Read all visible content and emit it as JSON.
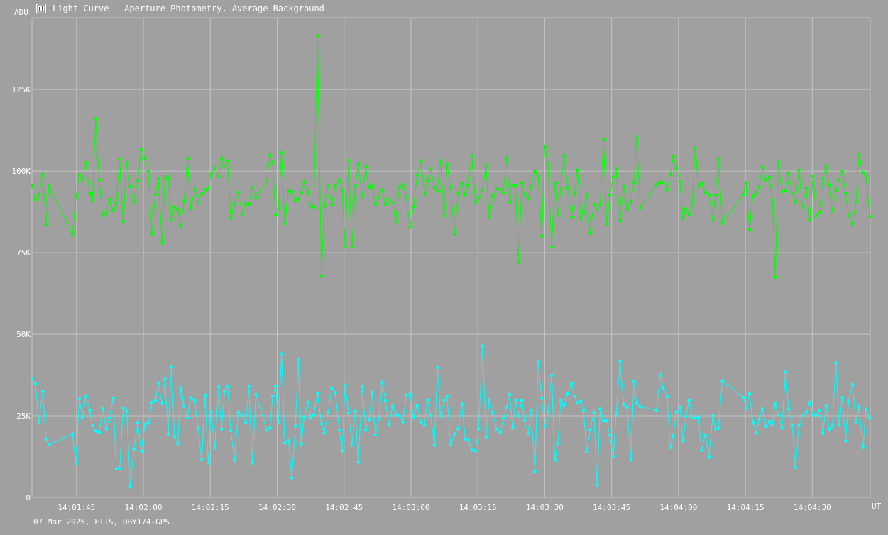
{
  "window": {
    "icon": "photometry-app-icon",
    "title": "Light Curve - Aperture Photometry, Average Background",
    "footer": "07 Mar 2025, FITS, QHY174-GPS"
  },
  "colors": {
    "background": "#a0a0a0",
    "grid": "#c4c4c4",
    "text": "#ffffff",
    "series_green": "#00ff00",
    "series_cyan": "#00ffff"
  },
  "chart_data": {
    "type": "line",
    "title": "Light Curve - Aperture Photometry, Average Background",
    "xlabel": "UT",
    "ylabel": "ADU",
    "x_time_range": [
      "14:01:35",
      "14:04:43"
    ],
    "ylim": [
      0,
      147000
    ],
    "grid": true,
    "y_ticks": [
      {
        "value": 0,
        "label": "0"
      },
      {
        "value": 25000,
        "label": "25K"
      },
      {
        "value": 50000,
        "label": "50K"
      },
      {
        "value": 75000,
        "label": "75K"
      },
      {
        "value": 100000,
        "label": "100K"
      },
      {
        "value": 125000,
        "label": "125K"
      }
    ],
    "x_ticks": [
      "14:01:45",
      "14:02:00",
      "14:02:15",
      "14:02:30",
      "14:02:45",
      "14:03:00",
      "14:03:15",
      "14:03:30",
      "14:03:45",
      "14:04:00",
      "14:04:15",
      "14:04:30"
    ],
    "series": [
      {
        "color": "#00ff00",
        "mean": 94000,
        "scatter": 7500,
        "spikes": [
          {
            "t": "14:02:39",
            "y": 141500
          },
          {
            "t": "14:02:40",
            "y": 67800
          },
          {
            "t": "14:04:22",
            "y": 67500
          },
          {
            "t": "14:01:49",
            "y": 116000
          },
          {
            "t": "14:03:24",
            "y": 72000
          }
        ]
      },
      {
        "color": "#00ffff",
        "mean": 25000,
        "scatter": 7500,
        "spikes": [
          {
            "t": "14:03:16",
            "y": 46400
          },
          {
            "t": "14:02:31",
            "y": 44000
          },
          {
            "t": "14:01:57",
            "y": 3200
          },
          {
            "t": "14:03:42",
            "y": 3800
          },
          {
            "t": "14:02:33",
            "y": 6000
          }
        ]
      }
    ]
  }
}
